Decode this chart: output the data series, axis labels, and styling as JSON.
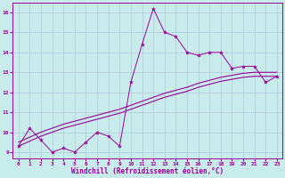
{
  "xlabel": "Windchill (Refroidissement éolien,°C)",
  "bg_color": "#c8ecec",
  "grid_color": "#b0c8d8",
  "line_color": "#990099",
  "xlim": [
    -0.5,
    23.5
  ],
  "ylim": [
    8.7,
    16.5
  ],
  "xticks": [
    0,
    1,
    2,
    3,
    4,
    5,
    6,
    7,
    8,
    9,
    10,
    11,
    12,
    13,
    14,
    15,
    16,
    17,
    18,
    19,
    20,
    21,
    22,
    23
  ],
  "yticks": [
    9,
    10,
    11,
    12,
    13,
    14,
    15,
    16
  ],
  "main_x": [
    0,
    1,
    2,
    3,
    4,
    5,
    6,
    7,
    8,
    9,
    10,
    11,
    12,
    13,
    14,
    15,
    16,
    17,
    18,
    19,
    20,
    21,
    22,
    23
  ],
  "main_y": [
    9.3,
    10.2,
    9.6,
    9.0,
    9.2,
    9.0,
    9.5,
    10.0,
    9.8,
    9.3,
    12.5,
    14.4,
    16.2,
    15.0,
    14.8,
    14.0,
    13.85,
    14.0,
    14.0,
    13.2,
    13.3,
    13.3,
    12.5,
    12.8
  ],
  "upper_x": [
    0,
    1,
    2,
    3,
    4,
    5,
    6,
    7,
    8,
    9,
    10,
    11,
    12,
    13,
    14,
    15,
    16,
    17,
    18,
    19,
    20,
    21,
    22,
    23
  ],
  "upper_y": [
    9.5,
    9.75,
    10.0,
    10.2,
    10.4,
    10.55,
    10.7,
    10.85,
    11.0,
    11.15,
    11.35,
    11.55,
    11.75,
    11.95,
    12.1,
    12.25,
    12.45,
    12.6,
    12.75,
    12.85,
    12.95,
    13.0,
    13.0,
    13.0
  ],
  "lower_x": [
    0,
    1,
    2,
    3,
    4,
    5,
    6,
    7,
    8,
    9,
    10,
    11,
    12,
    13,
    14,
    15,
    16,
    17,
    18,
    19,
    20,
    21,
    22,
    23
  ],
  "lower_y": [
    9.3,
    9.55,
    9.8,
    10.0,
    10.2,
    10.35,
    10.5,
    10.65,
    10.8,
    10.95,
    11.15,
    11.35,
    11.55,
    11.75,
    11.9,
    12.05,
    12.25,
    12.4,
    12.55,
    12.65,
    12.75,
    12.8,
    12.8,
    12.8
  ]
}
